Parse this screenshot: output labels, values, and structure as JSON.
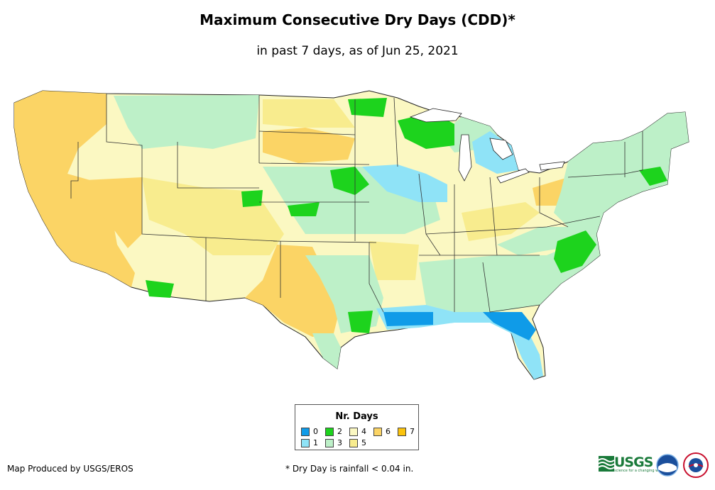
{
  "title": "Maximum Consecutive Dry Days (CDD)*",
  "subtitle": "in past 7 days, as of Jun 25, 2021",
  "legend": {
    "title": "Nr. Days",
    "items": [
      {
        "label": "0",
        "color": "#0f9be8"
      },
      {
        "label": "1",
        "color": "#8fe3f7"
      },
      {
        "label": "2",
        "color": "#1dd31d"
      },
      {
        "label": "3",
        "color": "#bdf0c8"
      },
      {
        "label": "4",
        "color": "#fbf8c2"
      },
      {
        "label": "5",
        "color": "#f8ec8e"
      },
      {
        "label": "6",
        "color": "#fbd465"
      },
      {
        "label": "7",
        "color": "#fbc30d"
      }
    ]
  },
  "credit": "Map Produced by USGS/EROS",
  "footnote": "* Dry Day is rainfall < 0.04 in.",
  "logos": {
    "usgs_wordmark": "USGS",
    "usgs_tagline": "science for a changing world",
    "noaa": "NOAA",
    "nws": "National Weather Service"
  }
}
